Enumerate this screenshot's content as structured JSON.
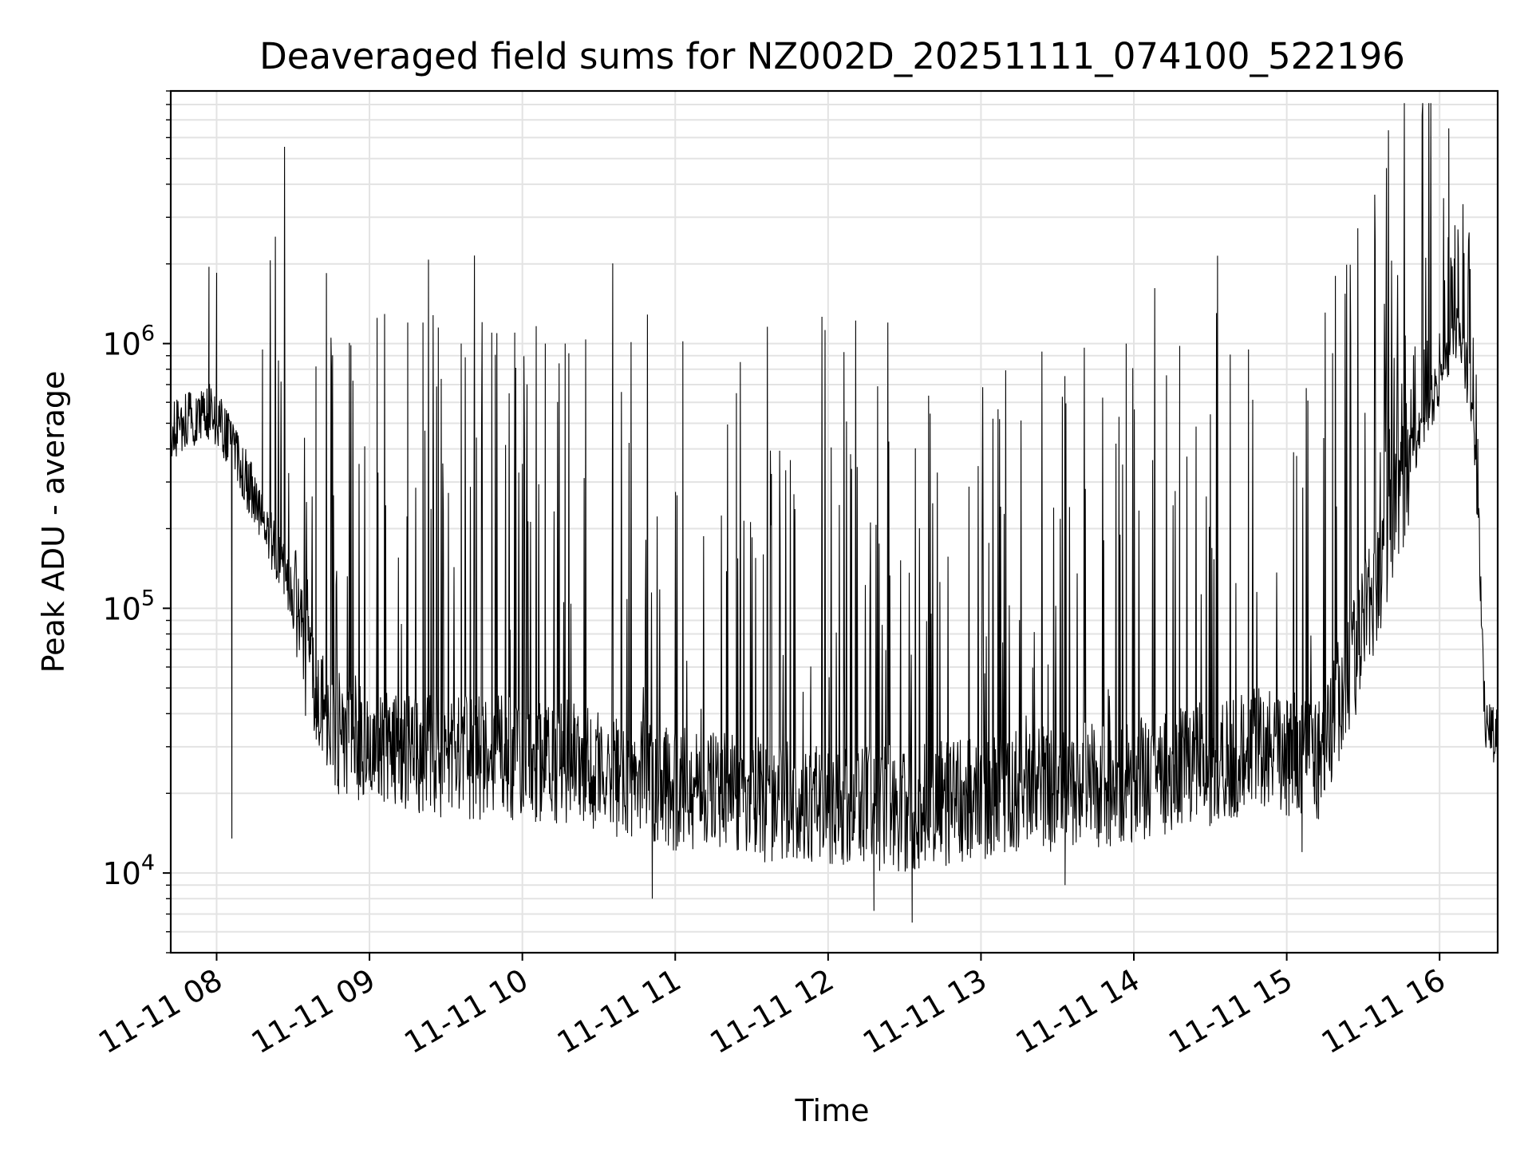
{
  "chart_data": {
    "type": "line",
    "title": "Deaveraged field sums for NZ002D_20251111_074100_522196",
    "xlabel": "Time",
    "ylabel": "Peak ADU - average",
    "yscale": "log",
    "ylim": [
      5000,
      9000000
    ],
    "xlim_hours": [
      7.7,
      16.38
    ],
    "grid": true,
    "line_color": "#000000",
    "x_ticks": [
      {
        "label": "11-11 08",
        "hour": 8
      },
      {
        "label": "11-11 09",
        "hour": 9
      },
      {
        "label": "11-11 10",
        "hour": 10
      },
      {
        "label": "11-11 11",
        "hour": 11
      },
      {
        "label": "11-11 12",
        "hour": 12
      },
      {
        "label": "11-11 13",
        "hour": 13
      },
      {
        "label": "11-11 14",
        "hour": 14
      },
      {
        "label": "11-11 15",
        "hour": 15
      },
      {
        "label": "11-11 16",
        "hour": 16
      }
    ],
    "y_ticks": [
      {
        "base": "10",
        "exp": "4",
        "value": 10000
      },
      {
        "base": "10",
        "exp": "5",
        "value": 100000
      },
      {
        "base": "10",
        "exp": "6",
        "value": 1000000
      }
    ],
    "baseline_hour": [
      7.7,
      7.95,
      8.1,
      8.3,
      8.5,
      8.6,
      8.8,
      9.5,
      10.3,
      10.8,
      11.5,
      12.0,
      12.5,
      13.0,
      13.5,
      14.0,
      14.5,
      14.9,
      15.2,
      15.4,
      15.6,
      15.8,
      16.0,
      16.1,
      16.2,
      16.25,
      16.3,
      16.38
    ],
    "baseline_value": [
      470000,
      560000,
      420000,
      220000,
      110000,
      55000,
      33000,
      28000,
      26000,
      22000,
      19000,
      18000,
      17500,
      19000,
      21000,
      22000,
      26000,
      30000,
      26000,
      55000,
      130000,
      350000,
      750000,
      1100000,
      700000,
      250000,
      35000,
      33000
    ],
    "spikes": [
      {
        "hour": 7.95,
        "value": 1950000
      },
      {
        "hour": 8.0,
        "value": 1850000
      },
      {
        "hour": 8.3,
        "value": 950000
      },
      {
        "hour": 8.65,
        "value": 820000
      },
      {
        "hour": 9.05,
        "value": 1250000
      },
      {
        "hour": 9.25,
        "value": 1200000
      },
      {
        "hour": 9.35,
        "value": 1200000
      },
      {
        "hour": 9.45,
        "value": 1150000
      },
      {
        "hour": 9.6,
        "value": 1000000
      },
      {
        "hour": 9.8,
        "value": 1100000
      },
      {
        "hour": 9.95,
        "value": 1100000
      },
      {
        "hour": 10.15,
        "value": 1000000
      },
      {
        "hour": 10.28,
        "value": 1000000
      },
      {
        "hour": 11.05,
        "value": 1020000
      },
      {
        "hour": 11.4,
        "value": 650000
      },
      {
        "hour": 13.95,
        "value": 1000000
      },
      {
        "hour": 14.3,
        "value": 980000
      },
      {
        "hour": 14.75,
        "value": 950000
      },
      {
        "hour": 15.3,
        "value": 920000
      },
      {
        "hour": 15.9,
        "value": 950000
      },
      {
        "hour": 16.06,
        "value": 6500000
      },
      {
        "hour": 16.1,
        "value": 2800000
      },
      {
        "hour": 16.12,
        "value": 2700000
      },
      {
        "hour": 16.16,
        "value": 1600000
      }
    ],
    "dips": [
      {
        "hour": 8.1,
        "value": 13500
      },
      {
        "hour": 10.85,
        "value": 8000
      },
      {
        "hour": 12.3,
        "value": 7200
      },
      {
        "hour": 12.55,
        "value": 6500
      },
      {
        "hour": 13.55,
        "value": 9000
      },
      {
        "hour": 15.1,
        "value": 12000
      }
    ]
  }
}
